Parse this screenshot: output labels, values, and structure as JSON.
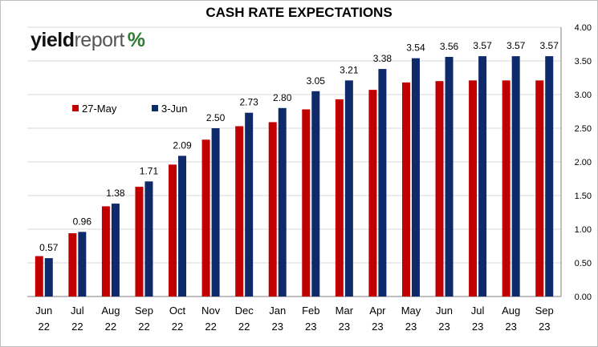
{
  "title": "CASH RATE EXPECTATIONS",
  "logo": {
    "part1": "yield",
    "part2": "report",
    "part3": "%"
  },
  "colors": {
    "series1": "#c00000",
    "series2": "#0f2a6b",
    "grid": "#d9d9d9",
    "axis": "#7f7f7f"
  },
  "legend": {
    "position": "upper-left"
  },
  "chart_data": {
    "type": "bar",
    "title": "CASH RATE EXPECTATIONS",
    "categories": [
      "Jun 22",
      "Jul 22",
      "Aug 22",
      "Sep 22",
      "Oct 22",
      "Nov 22",
      "Dec 22",
      "Jan 23",
      "Feb 23",
      "Mar 23",
      "Apr 23",
      "May 23",
      "Jun 23",
      "Jul 23",
      "Aug 23",
      "Sep 23"
    ],
    "category_lines": [
      [
        "Jun",
        "22"
      ],
      [
        "Jul",
        "22"
      ],
      [
        "Aug",
        "22"
      ],
      [
        "Sep",
        "22"
      ],
      [
        "Oct",
        "22"
      ],
      [
        "Nov",
        "22"
      ],
      [
        "Dec",
        "22"
      ],
      [
        "Jan",
        "23"
      ],
      [
        "Feb",
        "23"
      ],
      [
        "Mar",
        "23"
      ],
      [
        "Apr",
        "23"
      ],
      [
        "May",
        "23"
      ],
      [
        "Jun",
        "23"
      ],
      [
        "Jul",
        "23"
      ],
      [
        "Aug",
        "23"
      ],
      [
        "Sep",
        "23"
      ]
    ],
    "series": [
      {
        "name": "27-May",
        "values": [
          0.6,
          0.94,
          1.34,
          1.63,
          1.96,
          2.33,
          2.53,
          2.59,
          2.78,
          2.93,
          3.07,
          3.18,
          3.2,
          3.21,
          3.21,
          3.21
        ]
      },
      {
        "name": "3-Jun",
        "values": [
          0.57,
          0.96,
          1.38,
          1.71,
          2.09,
          2.5,
          2.73,
          2.8,
          3.05,
          3.21,
          3.38,
          3.54,
          3.56,
          3.57,
          3.57,
          3.57
        ]
      }
    ],
    "data_labels": [
      "0.57",
      "0.96",
      "1.38",
      "1.71",
      "2.09",
      "2.50",
      "2.73",
      "2.80",
      "3.05",
      "3.21",
      "3.38",
      "3.54",
      "3.56",
      "3.57",
      "3.57",
      "3.57"
    ],
    "yaxis_position": "right",
    "ylim": [
      0,
      4.0
    ],
    "yticks": [
      "0.00",
      "0.50",
      "1.00",
      "1.50",
      "2.00",
      "2.50",
      "3.00",
      "3.50",
      "4.00"
    ],
    "grid": true
  }
}
